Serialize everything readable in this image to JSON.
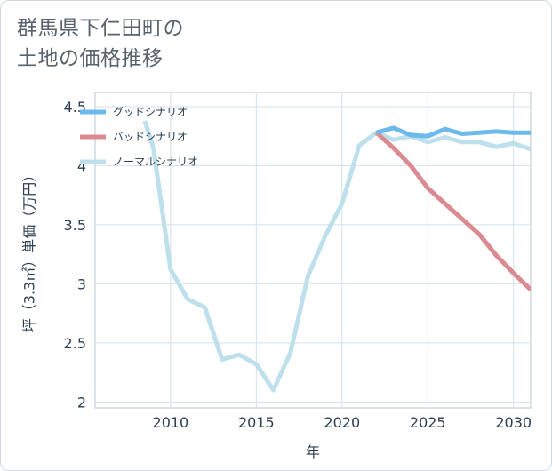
{
  "title_lines": [
    "群馬県下仁田町の",
    "土地の価格推移"
  ],
  "chart_data": {
    "type": "line",
    "title": "群馬県下仁田町の土地の価格推移",
    "xlabel": "年",
    "ylabel": "坪（3.3㎡）単価（万円）",
    "xlim": [
      2005.6,
      2031
    ],
    "ylim": [
      1.95,
      4.62
    ],
    "x_ticks": [
      2010,
      2015,
      2020,
      2025,
      2030
    ],
    "x_tick_labels": [
      "2010",
      "2015",
      "2020",
      "2025",
      "2030"
    ],
    "y_ticks": [
      2,
      2.5,
      3,
      3.5,
      4,
      4.5
    ],
    "y_tick_labels": [
      "2",
      "2.5",
      "3",
      "3.5",
      "4",
      "4.5"
    ],
    "grid": true,
    "legend_position": "top-left",
    "series": [
      {
        "name": "グッドシナリオ",
        "color": "#6cb9ec",
        "x": [
          2022,
          2023,
          2024,
          2025,
          2026,
          2027,
          2028,
          2029,
          2030,
          2031
        ],
        "values": [
          4.28,
          4.32,
          4.26,
          4.25,
          4.31,
          4.27,
          4.28,
          4.29,
          4.28,
          4.28
        ]
      },
      {
        "name": "バッドシナリオ",
        "color": "#dc8a91",
        "x": [
          2022,
          2023,
          2024,
          2025,
          2026,
          2027,
          2028,
          2029,
          2030,
          2031
        ],
        "values": [
          4.28,
          4.15,
          4.0,
          3.81,
          3.68,
          3.55,
          3.42,
          3.24,
          3.09,
          2.95
        ]
      },
      {
        "name": "ノーマルシナリオ",
        "color": "#bde0ec",
        "x": [
          2008.5,
          2009,
          2010,
          2011,
          2012,
          2013,
          2014,
          2015,
          2016,
          2017,
          2018,
          2019,
          2020,
          2021,
          2022,
          2023,
          2024,
          2025,
          2026,
          2027,
          2028,
          2029,
          2030,
          2031
        ],
        "values": [
          4.38,
          4.15,
          3.12,
          2.87,
          2.8,
          2.36,
          2.4,
          2.32,
          2.1,
          2.42,
          3.06,
          3.4,
          3.68,
          4.17,
          4.28,
          4.22,
          4.25,
          4.2,
          4.24,
          4.2,
          4.2,
          4.16,
          4.19,
          4.14
        ]
      }
    ]
  }
}
